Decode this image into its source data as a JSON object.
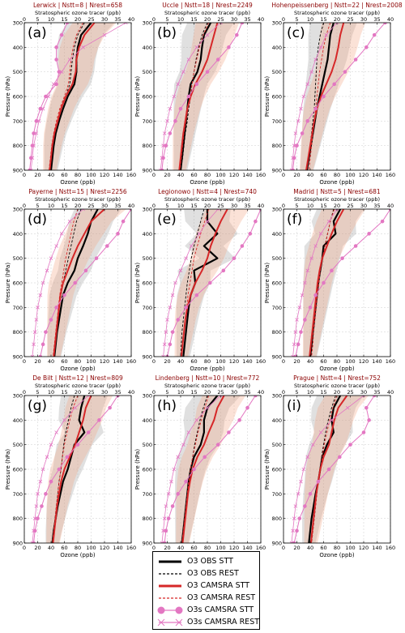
{
  "chart_data": {
    "type": "line",
    "shared": {
      "ylabel": "Pressure (hPa)",
      "xlabel_bottom": "Ozone (ppb)",
      "xlabel_top": "Stratospheric ozone tracer (ppb)",
      "ylim": [
        900,
        300
      ],
      "xlim_bottom": [
        0,
        160
      ],
      "xlim_top": [
        0,
        40
      ],
      "yticks": [
        "300",
        "400",
        "500",
        "600",
        "700",
        "800",
        "900"
      ],
      "xticks_bottom": [
        "0",
        "20",
        "40",
        "60",
        "80",
        "100",
        "120",
        "140",
        "160"
      ],
      "xticks_top": [
        "0",
        "5",
        "10",
        "15",
        "20",
        "25",
        "30",
        "35",
        "40"
      ],
      "grid": true
    },
    "levels": [
      300,
      350,
      400,
      450,
      500,
      550,
      600,
      650,
      700,
      750,
      800,
      850,
      900
    ],
    "panels": [
      {
        "letter": "(a)",
        "title": "Lerwick | Nstt=8 | Nrest=658",
        "series": {
          "obs_stt": [
            100,
            85,
            80,
            78,
            78,
            75,
            65,
            58,
            52,
            47,
            44,
            42,
            40
          ],
          "obs_rest": [
            90,
            80,
            75,
            72,
            70,
            68,
            62,
            55,
            50,
            46,
            43,
            41,
            39
          ],
          "camsra_stt": [
            105,
            90,
            82,
            78,
            77,
            72,
            62,
            55,
            50,
            45,
            42,
            40,
            38
          ],
          "camsra_rest": [
            88,
            78,
            73,
            70,
            68,
            66,
            60,
            53,
            48,
            44,
            41,
            39,
            37
          ],
          "o3s_stt": [
            16,
            14,
            12,
            12,
            13,
            12,
            8,
            6,
            4.5,
            3.5,
            3,
            2.5,
            2
          ],
          "o3s_rest": [
            38,
            30,
            22,
            17,
            14,
            11,
            9,
            7,
            5.5,
            4.5,
            3.5,
            3,
            2.5
          ]
        }
      },
      {
        "letter": "(b)",
        "title": "Uccle | Nstt=18 | Nrest=2249",
        "series": {
          "obs_stt": [
            85,
            75,
            72,
            70,
            65,
            55,
            52,
            50,
            48,
            46,
            44,
            42,
            40
          ],
          "obs_rest": [
            80,
            72,
            67,
            63,
            60,
            57,
            55,
            52,
            50,
            47,
            45,
            43,
            40
          ],
          "camsra_stt": [
            95,
            90,
            85,
            80,
            72,
            62,
            55,
            50,
            47,
            44,
            42,
            40,
            38
          ],
          "camsra_rest": [
            82,
            74,
            68,
            64,
            60,
            57,
            54,
            51,
            48,
            45,
            43,
            41,
            39
          ],
          "o3s_stt": [
            33,
            31,
            28,
            24,
            20,
            16,
            13,
            10,
            8,
            6,
            4.5,
            3.5,
            3
          ],
          "o3s_rest": [
            25,
            20,
            16,
            13,
            11,
            9,
            7.5,
            6,
            5,
            4,
            3.5,
            3,
            2.5
          ]
        }
      },
      {
        "letter": "(c)",
        "title": "Hohenpeissenberg | Nstt=22 | Nrest=2008",
        "series": {
          "obs_stt": [
            75,
            70,
            68,
            66,
            62,
            58,
            54,
            50,
            47,
            44,
            41,
            38,
            35
          ],
          "obs_rest": [
            60,
            55,
            52,
            50,
            49,
            48,
            47,
            46,
            44,
            42,
            40,
            38,
            36
          ],
          "camsra_stt": [
            90,
            85,
            82,
            78,
            72,
            64,
            56,
            50,
            46,
            43,
            40,
            37,
            34
          ],
          "camsra_rest": [
            70,
            64,
            60,
            57,
            54,
            52,
            50,
            48,
            46,
            44,
            42,
            40,
            38
          ],
          "o3s_stt": [
            38,
            34,
            31,
            27,
            23,
            19,
            15,
            12,
            9,
            7,
            5,
            4,
            3.5
          ],
          "o3s_rest": [
            20,
            16,
            14,
            12,
            10.5,
            9,
            7.5,
            6.5,
            5.5,
            4.5,
            4,
            3.5,
            3
          ]
        }
      },
      {
        "letter": "(d)",
        "title": "Payerne | Nstt=15 | Nrest=2256",
        "series": {
          "obs_stt": [
            110,
            100,
            95,
            88,
            80,
            75,
            65,
            58,
            55,
            52,
            49,
            47,
            45
          ],
          "obs_rest": [
            85,
            78,
            74,
            70,
            66,
            62,
            58,
            55,
            52,
            50,
            48,
            46,
            44
          ],
          "camsra_stt": [
            120,
            100,
            90,
            80,
            72,
            65,
            58,
            54,
            52,
            50,
            48,
            46,
            44
          ],
          "camsra_rest": [
            80,
            74,
            70,
            66,
            62,
            59,
            56,
            53,
            51,
            49,
            47,
            45,
            43
          ],
          "o3s_stt": [
            40,
            37,
            35,
            31,
            27,
            23,
            19,
            15,
            12,
            10,
            8,
            7,
            6
          ],
          "o3s_rest": [
            22,
            17,
            14,
            12,
            10,
            8.5,
            7,
            6,
            5,
            4.5,
            4,
            3.5,
            3
          ]
        }
      },
      {
        "letter": "(e)",
        "title": "Legionowo | Nstt=4 | Nrest=740",
        "series": {
          "obs_stt": [
            80,
            80,
            95,
            75,
            95,
            60,
            62,
            55,
            52,
            50,
            48,
            46,
            44
          ],
          "obs_rest": [
            75,
            70,
            65,
            60,
            56,
            53,
            50,
            48,
            46,
            44,
            42,
            41,
            40
          ],
          "camsra_stt": [
            110,
            100,
            92,
            85,
            80,
            72,
            62,
            55,
            50,
            47,
            45,
            43,
            41
          ],
          "camsra_rest": [
            82,
            76,
            70,
            65,
            60,
            57,
            54,
            51,
            49,
            47,
            45,
            43,
            41
          ],
          "o3s_stt": [
            40,
            38,
            36,
            33,
            30,
            26,
            21,
            16,
            12,
            9,
            7,
            6,
            5
          ],
          "o3s_rest": [
            24,
            20,
            17,
            14,
            12,
            10,
            8,
            7,
            6,
            5,
            4.5,
            4,
            3.5
          ]
        }
      },
      {
        "letter": "(f)",
        "title": "Madrid | Nstt=5 | Nrest=681",
        "series": {
          "obs_stt": [
            85,
            75,
            78,
            60,
            58,
            55,
            52,
            50,
            48,
            46,
            44,
            42,
            40
          ],
          "obs_rest": [
            75,
            70,
            66,
            62,
            58,
            55,
            53,
            51,
            49,
            47,
            45,
            43,
            41
          ],
          "camsra_stt": [
            90,
            80,
            72,
            65,
            58,
            54,
            51,
            49,
            47,
            45,
            43,
            41,
            39
          ],
          "camsra_rest": [
            76,
            70,
            66,
            62,
            58,
            55,
            53,
            51,
            49,
            47,
            45,
            44,
            42
          ],
          "o3s_stt": [
            40,
            37,
            32,
            27,
            22,
            18,
            15,
            12,
            10,
            8,
            6.5,
            5.5,
            4.5
          ],
          "o3s_rest": [
            20,
            17,
            14,
            12,
            10.5,
            9,
            8,
            7,
            6,
            5,
            4.5,
            4,
            3.5
          ]
        }
      },
      {
        "letter": "(g)",
        "title": "De Bilt | Nstt=12 | Nrest=809",
        "series": {
          "obs_stt": [
            90,
            85,
            82,
            90,
            75,
            70,
            65,
            58,
            54,
            50,
            47,
            44,
            42
          ],
          "obs_rest": [
            75,
            70,
            66,
            62,
            59,
            57,
            55,
            52,
            50,
            48,
            46,
            44,
            42
          ],
          "camsra_stt": [
            100,
            92,
            88,
            82,
            76,
            68,
            60,
            55,
            52,
            49,
            47,
            45,
            43
          ],
          "camsra_rest": [
            80,
            73,
            68,
            64,
            60,
            57,
            55,
            52,
            50,
            48,
            46,
            44,
            42
          ],
          "o3s_stt": [
            35,
            32,
            28,
            24,
            20,
            16,
            13,
            10,
            8,
            6.5,
            5,
            4,
            3.5
          ],
          "o3s_rest": [
            24,
            19,
            15,
            12,
            10,
            8.5,
            7,
            6,
            5,
            4.5,
            4,
            3.5,
            3
          ]
        }
      },
      {
        "letter": "(h)",
        "title": "Lindenberg | Nstt=10 | Nrest=772",
        "series": {
          "obs_stt": [
            95,
            80,
            75,
            75,
            70,
            60,
            55,
            52,
            50,
            48,
            46,
            44,
            42
          ],
          "obs_rest": [
            80,
            74,
            69,
            65,
            61,
            58,
            55,
            52,
            50,
            48,
            46,
            44,
            42
          ],
          "camsra_stt": [
            105,
            95,
            90,
            82,
            75,
            65,
            58,
            54,
            51,
            49,
            47,
            45,
            43
          ],
          "camsra_rest": [
            82,
            76,
            71,
            66,
            62,
            58,
            55,
            52,
            50,
            48,
            46,
            44,
            42
          ],
          "o3s_stt": [
            38,
            35,
            32,
            28,
            24,
            19,
            15,
            12,
            9,
            7,
            5.5,
            4.5,
            4
          ],
          "o3s_rest": [
            25,
            20,
            16,
            13,
            11,
            9,
            7.5,
            6.5,
            5.5,
            4.5,
            4,
            3.5,
            3
          ]
        }
      },
      {
        "letter": "(i)",
        "title": "Prague | Nstt=4 | Nrest=752",
        "series": {
          "obs_stt": [
            85,
            75,
            72,
            75,
            65,
            58,
            55,
            52,
            48,
            45,
            42,
            40,
            38
          ],
          "obs_rest": [
            78,
            72,
            67,
            63,
            60,
            57,
            55,
            52,
            50,
            48,
            46,
            44,
            42
          ],
          "camsra_stt": [
            95,
            82,
            76,
            72,
            68,
            60,
            55,
            52,
            49,
            47,
            45,
            43,
            41
          ],
          "camsra_rest": [
            80,
            74,
            69,
            65,
            61,
            58,
            55,
            52,
            50,
            48,
            46,
            44,
            42
          ],
          "o3s_stt": [
            34,
            31,
            32,
            30,
            25,
            21,
            17,
            13,
            10,
            8,
            6,
            5,
            4
          ],
          "o3s_rest": [
            30,
            24,
            18,
            14,
            11,
            9,
            7.5,
            6.5,
            5.5,
            4.5,
            4,
            3.5,
            3
          ]
        }
      }
    ],
    "legend": [
      {
        "key": "obs_stt",
        "label": "O3 OBS STT",
        "color": "#000000",
        "style": "solid-thick"
      },
      {
        "key": "obs_rest",
        "label": "O3 OBS REST",
        "color": "#000000",
        "style": "dashed-thin"
      },
      {
        "key": "camsra_stt",
        "label": "O3 CAMSRA STT",
        "color": "#d62728",
        "style": "solid-thick"
      },
      {
        "key": "camsra_rest",
        "label": "O3 CAMSRA REST",
        "color": "#d62728",
        "style": "dashed-thin"
      },
      {
        "key": "o3s_stt",
        "label": "O3s CAMSRA STT",
        "color": "#e377c2",
        "style": "line-circle"
      },
      {
        "key": "o3s_rest",
        "label": "O3s CAMSRA REST",
        "color": "#e377c2",
        "style": "line-x"
      }
    ],
    "colors": {
      "title_text": "#8b0000",
      "obs_band": "#9e9e9e",
      "camsra_band": "#f4a582",
      "grid": "#cccccc"
    }
  }
}
